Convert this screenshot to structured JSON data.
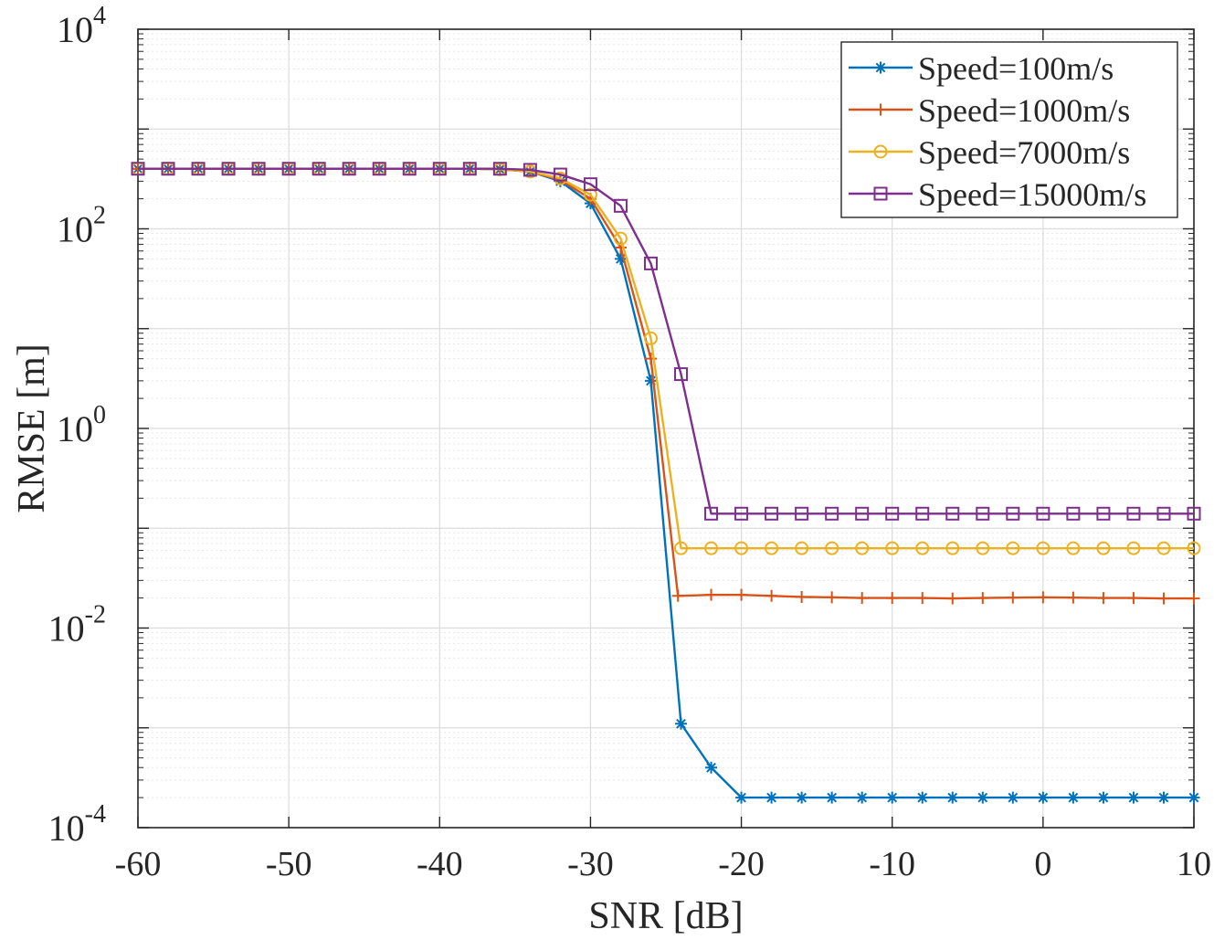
{
  "chart_data": {
    "type": "line",
    "title": "",
    "xlabel": "SNR [dB]",
    "ylabel": "RMSE [m]",
    "xlim": [
      -60,
      10
    ],
    "ylim": [
      0.0001,
      10000
    ],
    "yscale": "log",
    "grid": true,
    "minor_grid": true,
    "legend_position": "top-right",
    "x_ticks": [
      {
        "value": -60,
        "label": "-60"
      },
      {
        "value": -50,
        "label": "-50"
      },
      {
        "value": -40,
        "label": "-40"
      },
      {
        "value": -30,
        "label": "-30"
      },
      {
        "value": -20,
        "label": "-20"
      },
      {
        "value": -10,
        "label": "-10"
      },
      {
        "value": 0,
        "label": "0"
      },
      {
        "value": 10,
        "label": "10"
      }
    ],
    "y_ticks": [
      {
        "value": 0.0001,
        "base": "10",
        "exp": "-4"
      },
      {
        "value": 0.01,
        "base": "10",
        "exp": "-2"
      },
      {
        "value": 1,
        "base": "10",
        "exp": "0"
      },
      {
        "value": 100,
        "base": "10",
        "exp": "2"
      },
      {
        "value": 10000,
        "base": "10",
        "exp": "4"
      }
    ],
    "series": [
      {
        "name": "Speed=100m/s",
        "color": "#0072BD",
        "marker": "asterisk",
        "x": [
          -60,
          -58,
          -56,
          -54,
          -52,
          -50,
          -48,
          -46,
          -44,
          -42,
          -40,
          -38,
          -36,
          -34,
          -32,
          -30,
          -28,
          -26,
          -24,
          -22,
          -20,
          -18,
          -16,
          -14,
          -12,
          -10,
          -8,
          -6,
          -4,
          -2,
          0,
          2,
          4,
          6,
          8,
          10
        ],
        "y": [
          400,
          400,
          400,
          400,
          400,
          400,
          400,
          400,
          400,
          400,
          400,
          400,
          395,
          375,
          300,
          180,
          50,
          3,
          0.0011,
          0.0004,
          0.0002,
          0.0002,
          0.0002,
          0.0002,
          0.0002,
          0.0002,
          0.0002,
          0.0002,
          0.0002,
          0.0002,
          0.0002,
          0.0002,
          0.0002,
          0.0002,
          0.0002,
          0.0002
        ]
      },
      {
        "name": "Speed=1000m/s",
        "color": "#D95319",
        "marker": "plus",
        "x": [
          -60,
          -58,
          -56,
          -54,
          -52,
          -50,
          -48,
          -46,
          -44,
          -42,
          -40,
          -38,
          -36,
          -34,
          -32,
          -30,
          -28,
          -26,
          -24.2,
          -22,
          -20,
          -18,
          -16,
          -14,
          -12,
          -10,
          -8,
          -6,
          -4,
          -2,
          0,
          2,
          4,
          6,
          8,
          10
        ],
        "y": [
          400,
          400,
          400,
          400,
          400,
          400,
          400,
          400,
          400,
          400,
          400,
          400,
          395,
          375,
          310,
          200,
          65,
          5,
          0.021,
          0.0215,
          0.0215,
          0.021,
          0.0205,
          0.0203,
          0.02,
          0.02,
          0.02,
          0.0198,
          0.02,
          0.0202,
          0.0203,
          0.0202,
          0.02,
          0.02,
          0.0198,
          0.0198
        ]
      },
      {
        "name": "Speed=7000m/s",
        "color": "#EDB120",
        "marker": "circle",
        "x": [
          -60,
          -58,
          -56,
          -54,
          -52,
          -50,
          -48,
          -46,
          -44,
          -42,
          -40,
          -38,
          -36,
          -34,
          -32,
          -30,
          -28,
          -26,
          -24,
          -22,
          -20,
          -18,
          -16,
          -14,
          -12,
          -10,
          -8,
          -6,
          -4,
          -2,
          0,
          2,
          4,
          6,
          8,
          10
        ],
        "y": [
          400,
          400,
          400,
          400,
          400,
          400,
          400,
          400,
          400,
          400,
          400,
          400,
          395,
          375,
          320,
          220,
          80,
          8,
          0.063,
          0.063,
          0.063,
          0.063,
          0.063,
          0.063,
          0.063,
          0.063,
          0.063,
          0.063,
          0.063,
          0.063,
          0.063,
          0.063,
          0.063,
          0.063,
          0.063,
          0.063
        ]
      },
      {
        "name": "Speed=15000m/s",
        "color": "#7E2F8E",
        "marker": "square",
        "x": [
          -60,
          -58,
          -56,
          -54,
          -52,
          -50,
          -48,
          -46,
          -44,
          -42,
          -40,
          -38,
          -36,
          -34,
          -32,
          -30,
          -28,
          -26,
          -24,
          -22,
          -20,
          -18,
          -16,
          -14,
          -12,
          -10,
          -8,
          -6,
          -4,
          -2,
          0,
          2,
          4,
          6,
          8,
          10
        ],
        "y": [
          400,
          400,
          400,
          400,
          400,
          400,
          400,
          400,
          400,
          400,
          400,
          400,
          400,
          390,
          350,
          280,
          170,
          45,
          3.5,
          0.14,
          0.14,
          0.14,
          0.14,
          0.14,
          0.14,
          0.14,
          0.14,
          0.14,
          0.14,
          0.14,
          0.14,
          0.14,
          0.14,
          0.14,
          0.14,
          0.14
        ]
      }
    ]
  }
}
